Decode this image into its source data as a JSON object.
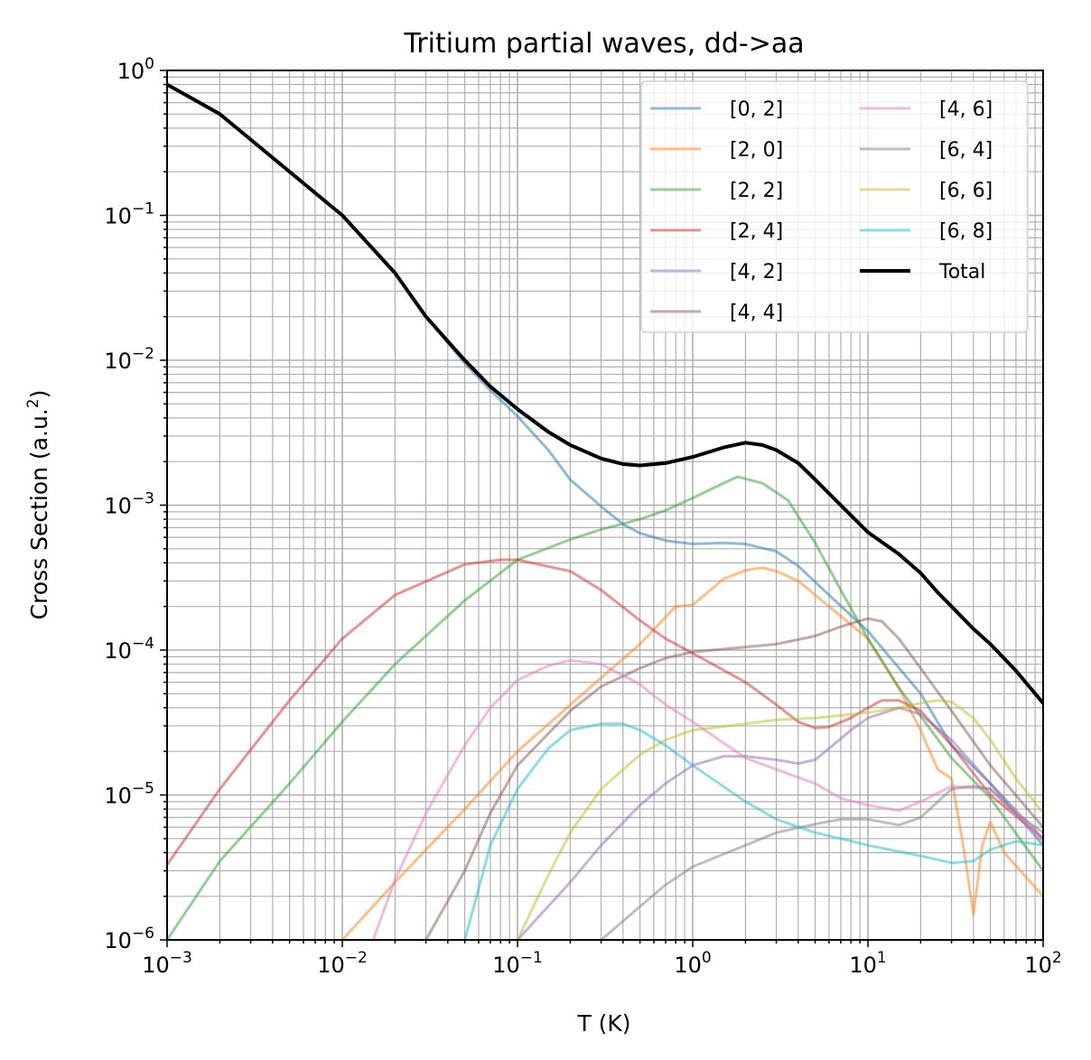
{
  "chart_data": {
    "type": "line",
    "title": "Tritium partial waves, dd->aa",
    "xlabel": "T (K)",
    "ylabel": "Cross Section (a.u.",
    "ylabel_sup": "2",
    "ylabel_close": ")",
    "xscale": "log",
    "yscale": "log",
    "xlim": [
      0.001,
      100
    ],
    "ylim": [
      1e-06,
      1
    ],
    "grid": true,
    "legend_position": "top-right",
    "legend_columns": 2,
    "x_ticks": [
      {
        "base": "10",
        "exp": "−3",
        "value": 0.001
      },
      {
        "base": "10",
        "exp": "−2",
        "value": 0.01
      },
      {
        "base": "10",
        "exp": "−1",
        "value": 0.1
      },
      {
        "base": "10",
        "exp": "0",
        "value": 1
      },
      {
        "base": "10",
        "exp": "1",
        "value": 10
      },
      {
        "base": "10",
        "exp": "2",
        "value": 100
      }
    ],
    "y_ticks": [
      {
        "base": "10",
        "exp": "−6",
        "value": 1e-06
      },
      {
        "base": "10",
        "exp": "−5",
        "value": 1e-05
      },
      {
        "base": "10",
        "exp": "−4",
        "value": 0.0001
      },
      {
        "base": "10",
        "exp": "−3",
        "value": 0.001
      },
      {
        "base": "10",
        "exp": "−2",
        "value": 0.01
      },
      {
        "base": "10",
        "exp": "−1",
        "value": 0.1
      },
      {
        "base": "10",
        "exp": "0",
        "value": 1
      }
    ],
    "series": [
      {
        "name": "[0, 2]",
        "color": "#1f77b4",
        "points": [
          [
            0.001,
            0.8
          ],
          [
            0.002,
            0.5
          ],
          [
            0.005,
            0.2
          ],
          [
            0.01,
            0.1
          ],
          [
            0.02,
            0.04
          ],
          [
            0.03,
            0.02
          ],
          [
            0.05,
            0.0095
          ],
          [
            0.07,
            0.0062
          ],
          [
            0.1,
            0.0041
          ],
          [
            0.15,
            0.0024
          ],
          [
            0.2,
            0.0015
          ],
          [
            0.3,
            0.00098
          ],
          [
            0.4,
            0.00074
          ],
          [
            0.5,
            0.00064
          ],
          [
            0.7,
            0.00057
          ],
          [
            1.0,
            0.00054
          ],
          [
            1.5,
            0.00055
          ],
          [
            2.0,
            0.00054
          ],
          [
            3.0,
            0.00048
          ],
          [
            4.0,
            0.00038
          ],
          [
            6.0,
            0.00024
          ],
          [
            10.0,
            0.000135
          ],
          [
            20.0,
            5e-05
          ],
          [
            30.0,
            2.2e-05
          ],
          [
            50.0,
            1.2e-05
          ],
          [
            100.0,
            4.5e-06
          ]
        ]
      },
      {
        "name": "[2, 0]",
        "color": "#ff7f0e",
        "points": [
          [
            0.01,
            1e-06
          ],
          [
            0.02,
            2.5e-06
          ],
          [
            0.05,
            8e-06
          ],
          [
            0.1,
            2e-05
          ],
          [
            0.2,
            4.2e-05
          ],
          [
            0.5,
            0.00011
          ],
          [
            0.8,
            0.0002
          ],
          [
            1.0,
            0.000205
          ],
          [
            1.5,
            0.00031
          ],
          [
            2.0,
            0.000355
          ],
          [
            2.5,
            0.00037
          ],
          [
            3.0,
            0.00035
          ],
          [
            4.0,
            0.0003
          ],
          [
            6.0,
            0.0002
          ],
          [
            10.0,
            0.00012
          ],
          [
            15.0,
            5.5e-05
          ],
          [
            20.0,
            2.8e-05
          ],
          [
            25.0,
            1.5e-05
          ],
          [
            30.0,
            1.3e-05
          ],
          [
            35.0,
            4.5e-06
          ],
          [
            40.0,
            1.5e-06
          ],
          [
            45.0,
            4.5e-06
          ],
          [
            50.0,
            6.5e-06
          ],
          [
            60.0,
            4e-06
          ],
          [
            100.0,
            2e-06
          ]
        ]
      },
      {
        "name": "[2, 2]",
        "color": "#2ca02c",
        "points": [
          [
            0.001,
            1e-06
          ],
          [
            0.002,
            3.5e-06
          ],
          [
            0.005,
            1.2e-05
          ],
          [
            0.01,
            3.2e-05
          ],
          [
            0.02,
            8e-05
          ],
          [
            0.05,
            0.00022
          ],
          [
            0.1,
            0.00042
          ],
          [
            0.2,
            0.00058
          ],
          [
            0.3,
            0.00068
          ],
          [
            0.5,
            0.0008
          ],
          [
            0.7,
            0.00092
          ],
          [
            1.0,
            0.00112
          ],
          [
            1.5,
            0.00142
          ],
          [
            1.8,
            0.00157
          ],
          [
            2.5,
            0.00142
          ],
          [
            3.5,
            0.00108
          ],
          [
            5.0,
            0.00055
          ],
          [
            7.0,
            0.00026
          ],
          [
            10.0,
            0.00012
          ],
          [
            15.0,
            5.5e-05
          ],
          [
            20.0,
            3.5e-05
          ],
          [
            30.0,
            1.8e-05
          ],
          [
            50.0,
            9.5e-06
          ],
          [
            100.0,
            3e-06
          ]
        ]
      },
      {
        "name": "[2, 4]",
        "color": "#d62728",
        "points": [
          [
            0.001,
            3.3e-06
          ],
          [
            0.002,
            1.1e-05
          ],
          [
            0.005,
            4.5e-05
          ],
          [
            0.01,
            0.00012
          ],
          [
            0.02,
            0.00024
          ],
          [
            0.05,
            0.00039
          ],
          [
            0.08,
            0.00042
          ],
          [
            0.1,
            0.00042
          ],
          [
            0.2,
            0.00035
          ],
          [
            0.3,
            0.00026
          ],
          [
            0.5,
            0.00016
          ],
          [
            0.7,
            0.00012
          ],
          [
            1.0,
            9.5e-05
          ],
          [
            2.0,
            6e-05
          ],
          [
            3.0,
            4.2e-05
          ],
          [
            4.0,
            3.2e-05
          ],
          [
            5.0,
            2.9e-05
          ],
          [
            6.0,
            2.95e-05
          ],
          [
            8.0,
            3.4e-05
          ],
          [
            10.0,
            4e-05
          ],
          [
            12.0,
            4.5e-05
          ],
          [
            15.0,
            4.5e-05
          ],
          [
            20.0,
            3.8e-05
          ],
          [
            30.0,
            2.2e-05
          ],
          [
            50.0,
            1e-05
          ],
          [
            100.0,
            5e-06
          ]
        ]
      },
      {
        "name": "[4, 2]",
        "color": "#9467bd",
        "points": [
          [
            0.1,
            1e-06
          ],
          [
            0.2,
            2.5e-06
          ],
          [
            0.3,
            4.5e-06
          ],
          [
            0.5,
            8.5e-06
          ],
          [
            0.7,
            1.2e-05
          ],
          [
            1.0,
            1.6e-05
          ],
          [
            1.5,
            1.85e-05
          ],
          [
            2.0,
            1.85e-05
          ],
          [
            3.0,
            1.75e-05
          ],
          [
            4.0,
            1.65e-05
          ],
          [
            5.0,
            1.75e-05
          ],
          [
            6.0,
            2.1e-05
          ],
          [
            8.0,
            2.8e-05
          ],
          [
            10.0,
            3.4e-05
          ],
          [
            15.0,
            4e-05
          ],
          [
            20.0,
            3.6e-05
          ],
          [
            30.0,
            2.4e-05
          ],
          [
            50.0,
            1.2e-05
          ],
          [
            100.0,
            5e-06
          ]
        ]
      },
      {
        "name": "[4, 4]",
        "color": "#8c564b",
        "points": [
          [
            0.03,
            1e-06
          ],
          [
            0.05,
            3e-06
          ],
          [
            0.07,
            7.5e-06
          ],
          [
            0.1,
            1.6e-05
          ],
          [
            0.2,
            3.8e-05
          ],
          [
            0.3,
            5.6e-05
          ],
          [
            0.5,
            7.5e-05
          ],
          [
            0.7,
            8.8e-05
          ],
          [
            1.0,
            9.7e-05
          ],
          [
            2.0,
            0.000105
          ],
          [
            3.0,
            0.00011
          ],
          [
            5.0,
            0.000125
          ],
          [
            7.0,
            0.000145
          ],
          [
            10.0,
            0.000165
          ],
          [
            12.0,
            0.000158
          ],
          [
            15.0,
            0.00012
          ],
          [
            20.0,
            7.5e-05
          ],
          [
            30.0,
            3.8e-05
          ],
          [
            50.0,
            1.6e-05
          ],
          [
            100.0,
            6e-06
          ]
        ]
      },
      {
        "name": "[4, 6]",
        "color": "#e377c2",
        "points": [
          [
            0.015,
            1e-06
          ],
          [
            0.02,
            2.6e-06
          ],
          [
            0.03,
            7.5e-06
          ],
          [
            0.05,
            2.2e-05
          ],
          [
            0.07,
            4e-05
          ],
          [
            0.1,
            6.2e-05
          ],
          [
            0.15,
            7.8e-05
          ],
          [
            0.2,
            8.5e-05
          ],
          [
            0.3,
            8e-05
          ],
          [
            0.5,
            5.8e-05
          ],
          [
            0.7,
            4.2e-05
          ],
          [
            1.0,
            3.2e-05
          ],
          [
            2.0,
            1.8e-05
          ],
          [
            3.0,
            1.5e-05
          ],
          [
            5.0,
            1.2e-05
          ],
          [
            7.0,
            9.5e-06
          ],
          [
            10.0,
            8.5e-06
          ],
          [
            15.0,
            7.8e-06
          ],
          [
            20.0,
            9e-06
          ],
          [
            30.0,
            1.15e-05
          ],
          [
            50.0,
            1.1e-05
          ],
          [
            100.0,
            4.8e-06
          ]
        ]
      },
      {
        "name": "[6, 4]",
        "color": "#7f7f7f",
        "points": [
          [
            0.3,
            1e-06
          ],
          [
            0.5,
            1.7e-06
          ],
          [
            0.7,
            2.4e-06
          ],
          [
            1.0,
            3.2e-06
          ],
          [
            2.0,
            4.5e-06
          ],
          [
            3.0,
            5.5e-06
          ],
          [
            5.0,
            6.3e-06
          ],
          [
            7.0,
            6.8e-06
          ],
          [
            10.0,
            6.8e-06
          ],
          [
            15.0,
            6.2e-06
          ],
          [
            20.0,
            7e-06
          ],
          [
            30.0,
            1.1e-05
          ],
          [
            40.0,
            1.15e-05
          ],
          [
            50.0,
            1.1e-05
          ],
          [
            70.0,
            7.5e-06
          ],
          [
            100.0,
            5.5e-06
          ]
        ]
      },
      {
        "name": "[6, 6]",
        "color": "#bcbd22",
        "points": [
          [
            0.1,
            1e-06
          ],
          [
            0.15,
            2.8e-06
          ],
          [
            0.2,
            5.5e-06
          ],
          [
            0.3,
            1.1e-05
          ],
          [
            0.5,
            1.9e-05
          ],
          [
            0.7,
            2.4e-05
          ],
          [
            1.0,
            2.8e-05
          ],
          [
            2.0,
            3.1e-05
          ],
          [
            3.0,
            3.3e-05
          ],
          [
            5.0,
            3.4e-05
          ],
          [
            10.0,
            3.7e-05
          ],
          [
            15.0,
            4e-05
          ],
          [
            20.0,
            4.3e-05
          ],
          [
            25.0,
            4.5e-05
          ],
          [
            30.0,
            4.4e-05
          ],
          [
            40.0,
            3.4e-05
          ],
          [
            50.0,
            2.4e-05
          ],
          [
            70.0,
            1.3e-05
          ],
          [
            100.0,
            7.5e-06
          ]
        ]
      },
      {
        "name": "[6, 8]",
        "color": "#17becf",
        "points": [
          [
            0.05,
            1e-06
          ],
          [
            0.07,
            4.5e-06
          ],
          [
            0.1,
            1.1e-05
          ],
          [
            0.15,
            2.1e-05
          ],
          [
            0.2,
            2.8e-05
          ],
          [
            0.3,
            3.1e-05
          ],
          [
            0.4,
            3.1e-05
          ],
          [
            0.5,
            2.8e-05
          ],
          [
            0.7,
            2.2e-05
          ],
          [
            1.0,
            1.6e-05
          ],
          [
            2.0,
            9e-06
          ],
          [
            3.0,
            6.8e-06
          ],
          [
            5.0,
            5.5e-06
          ],
          [
            7.0,
            5e-06
          ],
          [
            10.0,
            4.5e-06
          ],
          [
            20.0,
            3.8e-06
          ],
          [
            30.0,
            3.4e-06
          ],
          [
            40.0,
            3.5e-06
          ],
          [
            50.0,
            4.2e-06
          ],
          [
            70.0,
            4.8e-06
          ],
          [
            100.0,
            4.5e-06
          ]
        ]
      },
      {
        "name": "Total",
        "color": "#000000",
        "points": [
          [
            0.001,
            0.8
          ],
          [
            0.002,
            0.5
          ],
          [
            0.005,
            0.2
          ],
          [
            0.01,
            0.1
          ],
          [
            0.02,
            0.04
          ],
          [
            0.03,
            0.02
          ],
          [
            0.05,
            0.01
          ],
          [
            0.07,
            0.0066
          ],
          [
            0.1,
            0.0046
          ],
          [
            0.15,
            0.0032
          ],
          [
            0.2,
            0.0026
          ],
          [
            0.3,
            0.0021
          ],
          [
            0.4,
            0.00192
          ],
          [
            0.5,
            0.00188
          ],
          [
            0.7,
            0.00195
          ],
          [
            1.0,
            0.00215
          ],
          [
            1.5,
            0.0025
          ],
          [
            2.0,
            0.0027
          ],
          [
            2.5,
            0.0026
          ],
          [
            3.0,
            0.0024
          ],
          [
            4.0,
            0.00195
          ],
          [
            5.0,
            0.0015
          ],
          [
            7.0,
            0.001
          ],
          [
            10.0,
            0.00065
          ],
          [
            15.0,
            0.00046
          ],
          [
            20.0,
            0.00034
          ],
          [
            25.0,
            0.00025
          ],
          [
            30.0,
            0.0002
          ],
          [
            40.0,
            0.00014
          ],
          [
            50.0,
            0.00011
          ],
          [
            70.0,
            7.2e-05
          ],
          [
            100.0,
            4.3e-05
          ]
        ]
      }
    ]
  }
}
